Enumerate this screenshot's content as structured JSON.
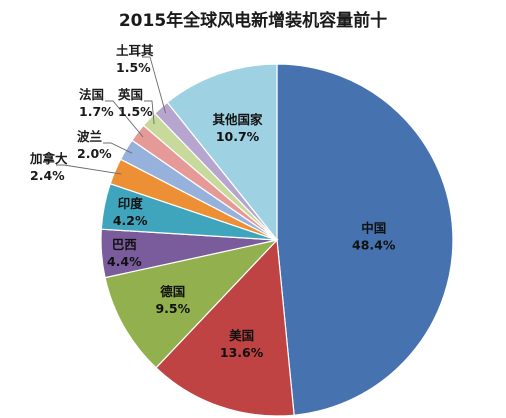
{
  "chart_data": {
    "type": "pie",
    "title": "2015年全球风电新增装机容量前十",
    "categories": [
      "中国",
      "美国",
      "德国",
      "巴西",
      "印度",
      "加拿大",
      "波兰",
      "法国",
      "英国",
      "土耳其",
      "其他国家"
    ],
    "values": [
      48.4,
      13.6,
      9.5,
      4.4,
      4.2,
      2.4,
      2.0,
      1.7,
      1.5,
      1.5,
      10.7
    ],
    "value_labels": [
      "48.4%",
      "13.6%",
      "9.5%",
      "4.4%",
      "4.2%",
      "2.4%",
      "2.0%",
      "1.7%",
      "1.5%",
      "1.5%",
      "10.7%"
    ],
    "colors": [
      "#4672b0",
      "#bf4342",
      "#92b04d",
      "#7a5c9c",
      "#3fa5bd",
      "#ec8f35",
      "#96b1db",
      "#e69a98",
      "#c7da9b",
      "#b6a6cf",
      "#9ed2e3"
    ],
    "legend": "none"
  }
}
